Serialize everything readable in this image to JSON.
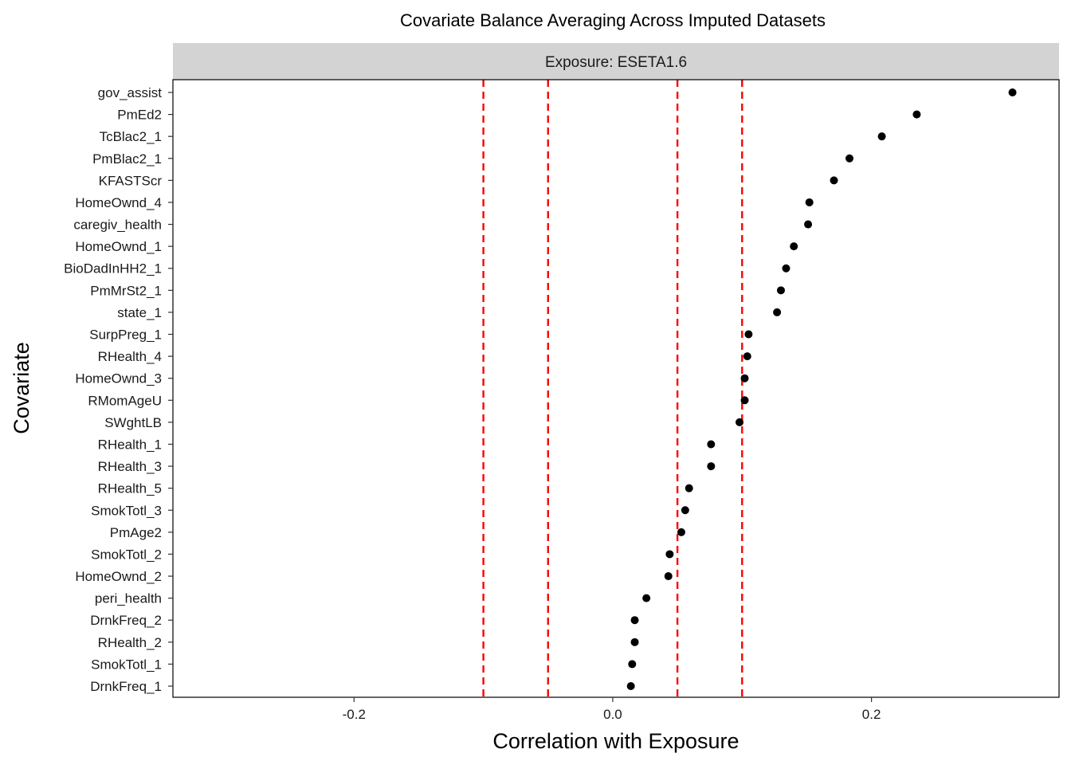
{
  "chart_data": {
    "type": "scatter",
    "title": "Covariate Balance Averaging Across Imputed Datasets",
    "facet_label": "Exposure: ESETA1.6",
    "xlabel": "Correlation with Exposure",
    "ylabel": "Covariate",
    "xlim": [
      -0.34,
      0.345
    ],
    "x_ticks": [
      -0.2,
      0.0,
      0.2
    ],
    "x_tick_labels": [
      "-0.2",
      "0.0",
      "0.2"
    ],
    "reference_lines": [
      -0.1,
      -0.05,
      0.05,
      0.1
    ],
    "reference_line_color": "#ff0000",
    "point_color": "#000000",
    "grid": false,
    "points": [
      {
        "covariate": "gov_assist",
        "value": 0.309
      },
      {
        "covariate": "PmEd2",
        "value": 0.235
      },
      {
        "covariate": "TcBlac2_1",
        "value": 0.208
      },
      {
        "covariate": "PmBlac2_1",
        "value": 0.183
      },
      {
        "covariate": "KFASTScr",
        "value": 0.171
      },
      {
        "covariate": "HomeOwnd_4",
        "value": 0.152
      },
      {
        "covariate": "caregiv_health",
        "value": 0.151
      },
      {
        "covariate": "HomeOwnd_1",
        "value": 0.14
      },
      {
        "covariate": "BioDadInHH2_1",
        "value": 0.134
      },
      {
        "covariate": "PmMrSt2_1",
        "value": 0.13
      },
      {
        "covariate": "state_1",
        "value": 0.127
      },
      {
        "covariate": "SurpPreg_1",
        "value": 0.105
      },
      {
        "covariate": "RHealth_4",
        "value": 0.104
      },
      {
        "covariate": "HomeOwnd_3",
        "value": 0.102
      },
      {
        "covariate": "RMomAgeU",
        "value": 0.102
      },
      {
        "covariate": "SWghtLB",
        "value": 0.098
      },
      {
        "covariate": "RHealth_1",
        "value": 0.076
      },
      {
        "covariate": "RHealth_3",
        "value": 0.076
      },
      {
        "covariate": "RHealth_5",
        "value": 0.059
      },
      {
        "covariate": "SmokTotl_3",
        "value": 0.056
      },
      {
        "covariate": "PmAge2",
        "value": 0.053
      },
      {
        "covariate": "SmokTotl_2",
        "value": 0.044
      },
      {
        "covariate": "HomeOwnd_2",
        "value": 0.043
      },
      {
        "covariate": "peri_health",
        "value": 0.026
      },
      {
        "covariate": "DrnkFreq_2",
        "value": 0.017
      },
      {
        "covariate": "RHealth_2",
        "value": 0.017
      },
      {
        "covariate": "SmokTotl_1",
        "value": 0.015
      },
      {
        "covariate": "DrnkFreq_1",
        "value": 0.014
      }
    ]
  }
}
